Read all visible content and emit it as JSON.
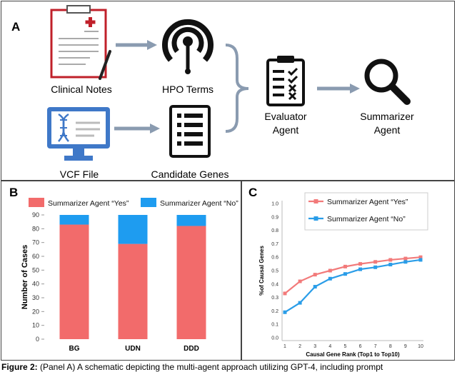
{
  "panel_a": {
    "letter": "A",
    "nodes": {
      "clinical_notes": "Clinical Notes",
      "hpo_terms": "HPO Terms",
      "vcf_file": "VCF File",
      "candidate_genes": "Candidate Genes",
      "evaluator_line1": "Evaluator",
      "evaluator_line2": "Agent",
      "summarizer_line1": "Summarizer",
      "summarizer_line2": "Agent"
    },
    "colors": {
      "notes_red": "#c0202a",
      "vcf_blue": "#3f78c8",
      "arrow_gray": "#8a9bb0"
    }
  },
  "panel_b": {
    "letter": "B",
    "chart_data": {
      "type": "bar",
      "stacked": true,
      "categories": [
        "BG",
        "UDN",
        "DDD"
      ],
      "series": [
        {
          "name": "Summarizer Agent “Yes”",
          "values": [
            83,
            69,
            82
          ],
          "color": "#f26b6b"
        },
        {
          "name": "Summarizer Agent “No”",
          "values": [
            7,
            21,
            8
          ],
          "color": "#1e9cf0"
        }
      ],
      "ylabel": "Number of Cases",
      "ylim": [
        0,
        90
      ],
      "yticks": [
        0,
        10,
        20,
        30,
        40,
        50,
        60,
        70,
        80,
        90
      ],
      "legend": "top"
    }
  },
  "panel_c": {
    "letter": "C",
    "chart_data": {
      "type": "line",
      "x": [
        1,
        2,
        3,
        4,
        5,
        6,
        7,
        8,
        9,
        10
      ],
      "series": [
        {
          "name": "Summarizer Agent “Yes”",
          "values": [
            0.33,
            0.42,
            0.47,
            0.5,
            0.53,
            0.55,
            0.565,
            0.58,
            0.59,
            0.6
          ],
          "color": "#f27a7a"
        },
        {
          "name": "Summarizer Agent “No”",
          "values": [
            0.19,
            0.26,
            0.38,
            0.44,
            0.475,
            0.51,
            0.525,
            0.545,
            0.565,
            0.58
          ],
          "color": "#2a9de8"
        }
      ],
      "xlabel": "Causal Gene Rank (Top1 to Top10)",
      "ylabel": "%of Causal Genes",
      "ylim": [
        0,
        1.0
      ],
      "yticks": [
        "0.0",
        "0.1",
        "0.2",
        "0.3",
        "0.4",
        "0.5",
        "0.6",
        "0.7",
        "0.8",
        "0.9",
        "1.0"
      ],
      "xticks": [
        "1",
        "2",
        "3",
        "4",
        "5",
        "6",
        "7",
        "8",
        "9",
        "10"
      ],
      "legend": "top-left"
    }
  },
  "caption": {
    "label": "Figure 2:",
    "text": " (Panel A) A schematic depicting the multi-agent approach utilizing GPT-4, including prompt"
  }
}
